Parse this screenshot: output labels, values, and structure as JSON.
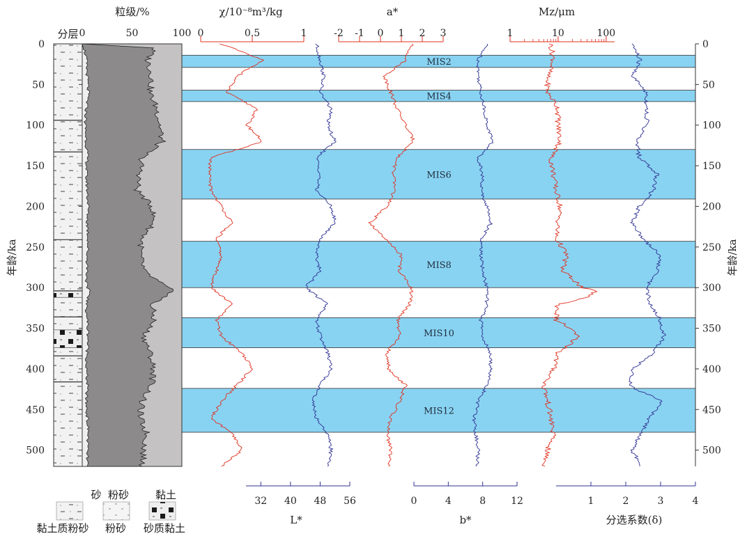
{
  "chart_data": {
    "type": "line",
    "y_axis": {
      "label": "年龄/ka",
      "range": [
        0,
        520
      ],
      "ticks": [
        0,
        50,
        100,
        150,
        200,
        250,
        300,
        350,
        400,
        450,
        500
      ]
    },
    "mis_bands": [
      {
        "label": "MIS2",
        "from": 14,
        "to": 29
      },
      {
        "label": "MIS4",
        "from": 57,
        "to": 71
      },
      {
        "label": "MIS6",
        "from": 130,
        "to": 191
      },
      {
        "label": "MIS8",
        "from": 243,
        "to": 300
      },
      {
        "label": "MIS10",
        "from": 337,
        "to": 374
      },
      {
        "label": "MIS12",
        "from": 424,
        "to": 478
      }
    ],
    "stratigraphy": {
      "title": "分层",
      "legend": [
        {
          "pattern": "clay-silt",
          "label": "黏土质粉砂"
        },
        {
          "pattern": "silt",
          "label": "粉砂"
        },
        {
          "pattern": "sandy-clay",
          "label": "砂质黏土"
        }
      ],
      "boundaries": [
        94,
        133,
        241,
        304,
        336,
        384,
        416
      ],
      "sandy_clay_intervals": [
        [
          304,
          312
        ],
        [
          352,
          374
        ]
      ]
    },
    "grain_size": {
      "title": "粒级/%",
      "range": [
        0,
        100
      ],
      "ticks": [
        0,
        50,
        100
      ],
      "fractions": [
        "砂",
        "粉砂",
        "黏土"
      ],
      "sand_pct": {
        "age": [
          5,
          20,
          40,
          60,
          80,
          100,
          120,
          140,
          160,
          180,
          200,
          220,
          240,
          260,
          280,
          300,
          305,
          320,
          340,
          360,
          380,
          400,
          420,
          440,
          460,
          480,
          500,
          520
        ],
        "value": [
          2,
          4,
          5,
          6,
          4,
          3,
          4,
          5,
          4,
          5,
          6,
          5,
          6,
          5,
          5,
          4,
          8,
          4,
          5,
          6,
          5,
          4,
          5,
          4,
          5,
          6,
          5,
          5
        ]
      },
      "sand_silt_pct": {
        "age": [
          5,
          20,
          40,
          60,
          80,
          100,
          120,
          140,
          160,
          180,
          200,
          220,
          240,
          260,
          280,
          300,
          305,
          320,
          340,
          360,
          380,
          400,
          420,
          440,
          460,
          480,
          500,
          520
        ],
        "value": [
          72,
          66,
          70,
          68,
          75,
          78,
          80,
          60,
          58,
          55,
          70,
          72,
          60,
          58,
          62,
          85,
          92,
          70,
          72,
          62,
          68,
          72,
          70,
          60,
          58,
          65,
          62,
          60
        ]
      }
    },
    "curves": [
      {
        "name": "χ/10⁻⁸m³/kg",
        "axis": "top",
        "scale": "linear",
        "range": [
          0,
          1
        ],
        "ticks": [
          0,
          0.5,
          1
        ],
        "tick_labels": [
          "0",
          "0.5",
          "1"
        ],
        "color": "#e0301e",
        "age": [
          0,
          20,
          40,
          60,
          80,
          100,
          120,
          140,
          160,
          180,
          200,
          220,
          240,
          260,
          280,
          300,
          320,
          340,
          360,
          380,
          400,
          420,
          440,
          460,
          480,
          500,
          520
        ],
        "value": [
          0.2,
          0.6,
          0.35,
          0.25,
          0.55,
          0.45,
          0.6,
          0.1,
          0.08,
          0.1,
          0.2,
          0.3,
          0.15,
          0.2,
          0.15,
          0.1,
          0.3,
          0.15,
          0.2,
          0.4,
          0.5,
          0.35,
          0.2,
          0.1,
          0.3,
          0.4,
          0.2
        ]
      },
      {
        "name": "L*",
        "axis": "bottom",
        "scale": "linear",
        "range": [
          28,
          56
        ],
        "ticks": [
          32,
          40,
          48,
          56
        ],
        "tick_labels": [
          "32",
          "40",
          "48",
          "56"
        ],
        "color": "#2e3192",
        "age": [
          0,
          20,
          40,
          60,
          80,
          100,
          120,
          140,
          160,
          180,
          200,
          220,
          240,
          260,
          280,
          300,
          320,
          340,
          360,
          380,
          400,
          420,
          440,
          460,
          480,
          500,
          520
        ],
        "value": [
          47,
          48,
          49,
          48,
          51,
          50,
          52,
          47,
          48,
          47,
          51,
          52,
          48,
          47,
          48,
          44,
          50,
          47,
          48,
          50,
          51,
          48,
          46,
          47,
          50,
          51,
          50
        ]
      },
      {
        "name": "a*",
        "axis": "top",
        "scale": "linear",
        "range": [
          -2,
          3
        ],
        "ticks": [
          -2,
          -1,
          0,
          1,
          2,
          3
        ],
        "tick_labels": [
          "-2",
          "-1",
          "0",
          "1",
          "2",
          "3"
        ],
        "color": "#e0301e",
        "age": [
          0,
          20,
          40,
          60,
          80,
          100,
          120,
          140,
          160,
          180,
          200,
          220,
          240,
          260,
          280,
          300,
          320,
          340,
          360,
          380,
          400,
          420,
          440,
          460,
          480,
          500,
          520
        ],
        "value": [
          1.5,
          1.2,
          0.2,
          0.5,
          0.8,
          1.2,
          1.6,
          0.8,
          0.6,
          0.7,
          0.3,
          -0.5,
          0.2,
          1.0,
          0.9,
          1.5,
          1.4,
          0.8,
          0.9,
          0.3,
          0.4,
          1.2,
          0.9,
          0.5,
          0.3,
          0.5,
          0.4
        ]
      },
      {
        "name": "b*",
        "axis": "bottom",
        "scale": "linear",
        "range": [
          0,
          12
        ],
        "ticks": [
          0,
          4,
          8,
          12
        ],
        "tick_labels": [
          "0",
          "4",
          "8",
          "12"
        ],
        "color": "#2e3192",
        "age": [
          0,
          20,
          40,
          60,
          80,
          100,
          120,
          140,
          160,
          180,
          200,
          220,
          240,
          260,
          280,
          300,
          320,
          340,
          360,
          380,
          400,
          420,
          440,
          460,
          480,
          500,
          520
        ],
        "value": [
          8.5,
          7.5,
          7.5,
          7.8,
          8.2,
          8.5,
          9.2,
          7.5,
          8,
          7.8,
          8.5,
          9,
          7.8,
          7.8,
          8,
          8.5,
          8.5,
          7.8,
          8,
          8.8,
          9,
          8.5,
          7.5,
          7,
          7.2,
          7.5,
          7.3
        ]
      },
      {
        "name": "Mz/μm",
        "axis": "top",
        "scale": "log",
        "range": [
          1,
          150
        ],
        "ticks": [
          1,
          10,
          100
        ],
        "tick_labels": [
          "1",
          "10",
          "100"
        ],
        "color": "#e0301e",
        "age": [
          0,
          20,
          40,
          60,
          80,
          100,
          120,
          140,
          160,
          180,
          200,
          220,
          240,
          260,
          280,
          300,
          305,
          320,
          340,
          360,
          380,
          400,
          420,
          440,
          460,
          480,
          500,
          520
        ],
        "value": [
          7,
          8,
          6,
          6,
          10,
          10,
          11,
          7,
          8,
          9,
          11,
          10,
          9,
          15,
          12,
          30,
          60,
          10,
          9,
          25,
          10,
          8,
          5,
          6,
          7,
          8,
          6,
          5
        ]
      },
      {
        "name": "分选系数(δ)",
        "axis": "bottom",
        "scale": "linear",
        "range": [
          0,
          4
        ],
        "ticks": [
          1,
          2,
          3,
          4
        ],
        "tick_labels": [
          "1",
          "2",
          "3",
          "4"
        ],
        "color": "#2e3192",
        "age": [
          0,
          20,
          40,
          60,
          80,
          100,
          120,
          140,
          160,
          180,
          200,
          220,
          240,
          260,
          280,
          300,
          320,
          340,
          360,
          380,
          400,
          420,
          440,
          460,
          480,
          500,
          520
        ],
        "value": [
          2.2,
          2.4,
          2.2,
          2.6,
          2.6,
          2.6,
          2.3,
          2.4,
          2.9,
          2.8,
          2.4,
          2.2,
          2.5,
          3.0,
          2.9,
          2.6,
          2.7,
          3.0,
          3.1,
          2.8,
          2.2,
          2.1,
          3.0,
          2.7,
          2.4,
          2.2,
          2.4
        ]
      }
    ]
  }
}
